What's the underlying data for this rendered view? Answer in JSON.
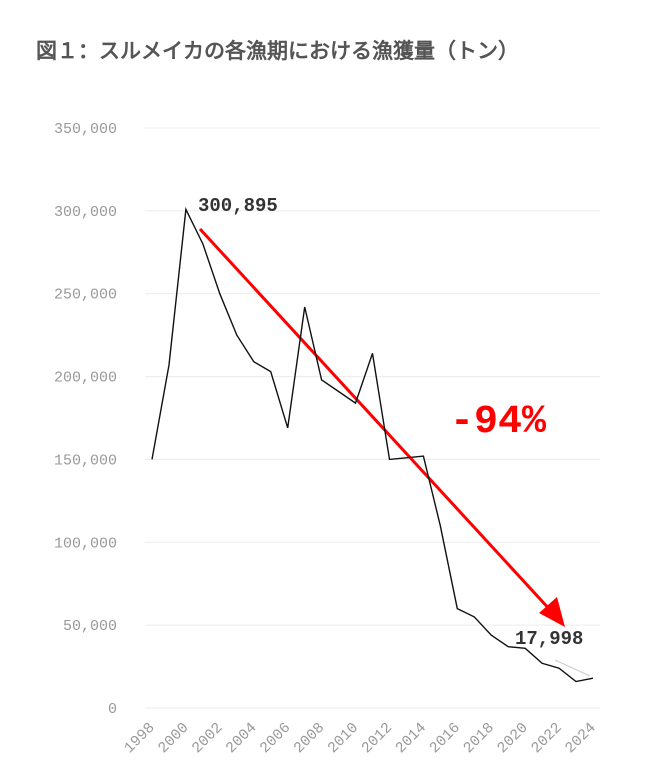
{
  "chart_data": {
    "type": "line",
    "title": "図１：スルメイカの各漁期における漁獲量（トン）",
    "x": [
      1998,
      1999,
      2000,
      2001,
      2002,
      2003,
      2004,
      2005,
      2006,
      2007,
      2008,
      2009,
      2010,
      2011,
      2012,
      2013,
      2014,
      2015,
      2016,
      2017,
      2018,
      2019,
      2020,
      2021,
      2022,
      2023,
      2024
    ],
    "series": [
      {
        "color": "#111111",
        "values": [
          150000,
          207000,
          300895,
          280000,
          250000,
          225000,
          209000,
          203000,
          169000,
          242000,
          198000,
          191000,
          184000,
          214000,
          150000,
          151000,
          152000,
          110000,
          60000,
          55000,
          44000,
          37000,
          36000,
          27000,
          24000,
          16000,
          17998
        ]
      }
    ],
    "xlim": [
      1998,
      2024
    ],
    "xticks": [
      1998,
      2000,
      2002,
      2004,
      2006,
      2008,
      2010,
      2012,
      2014,
      2016,
      2018,
      2020,
      2022,
      2024
    ],
    "ylim": [
      0,
      350000
    ],
    "yticks": [
      0,
      {
        "value": 50000,
        "label": "50,000"
      },
      {
        "value": 100000,
        "label": "100,000"
      },
      {
        "value": 150000,
        "label": "150,000"
      },
      {
        "value": 200000,
        "label": "200,000"
      },
      {
        "value": 250000,
        "label": "250,000"
      },
      {
        "value": 300000,
        "label": "300,000"
      },
      {
        "value": 350000,
        "label": "350,000"
      }
    ],
    "grid": true,
    "annotations": [
      "300,895",
      "17,998",
      "-94%"
    ]
  }
}
